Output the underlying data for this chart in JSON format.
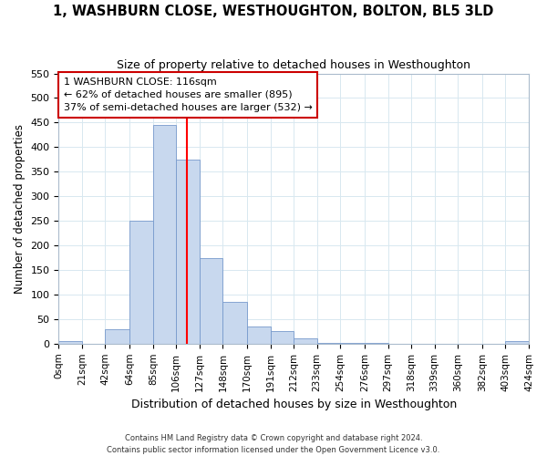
{
  "title": "1, WASHBURN CLOSE, WESTHOUGHTON, BOLTON, BL5 3LD",
  "subtitle": "Size of property relative to detached houses in Westhoughton",
  "xlabel": "Distribution of detached houses by size in Westhoughton",
  "ylabel": "Number of detached properties",
  "bin_edges": [
    0,
    21,
    42,
    64,
    85,
    106,
    127,
    148,
    170,
    191,
    212,
    233,
    254,
    276,
    297,
    318,
    339,
    360,
    382,
    403,
    424
  ],
  "bar_heights": [
    5,
    0,
    30,
    250,
    445,
    375,
    175,
    85,
    35,
    25,
    10,
    2,
    1,
    1,
    0,
    0,
    0,
    0,
    0,
    5
  ],
  "bar_color": "#c8d8ee",
  "bar_edge_color": "#7799cc",
  "grid_color": "#d8e8f0",
  "background_color": "#ffffff",
  "fig_background": "#ffffff",
  "red_line_x": 116,
  "annotation_line1": "1 WASHBURN CLOSE: 116sqm",
  "annotation_line2": "← 62% of detached houses are smaller (895)",
  "annotation_line3": "37% of semi-detached houses are larger (532) →",
  "annotation_box_color": "#ffffff",
  "annotation_box_edge_color": "#cc0000",
  "ylim": [
    0,
    550
  ],
  "yticks": [
    0,
    50,
    100,
    150,
    200,
    250,
    300,
    350,
    400,
    450,
    500,
    550
  ],
  "tick_labels": [
    "0sqm",
    "21sqm",
    "42sqm",
    "64sqm",
    "85sqm",
    "106sqm",
    "127sqm",
    "148sqm",
    "170sqm",
    "191sqm",
    "212sqm",
    "233sqm",
    "254sqm",
    "276sqm",
    "297sqm",
    "318sqm",
    "339sqm",
    "360sqm",
    "382sqm",
    "403sqm",
    "424sqm"
  ],
  "footer_line1": "Contains HM Land Registry data © Crown copyright and database right 2024.",
  "footer_line2": "Contains public sector information licensed under the Open Government Licence v3.0."
}
